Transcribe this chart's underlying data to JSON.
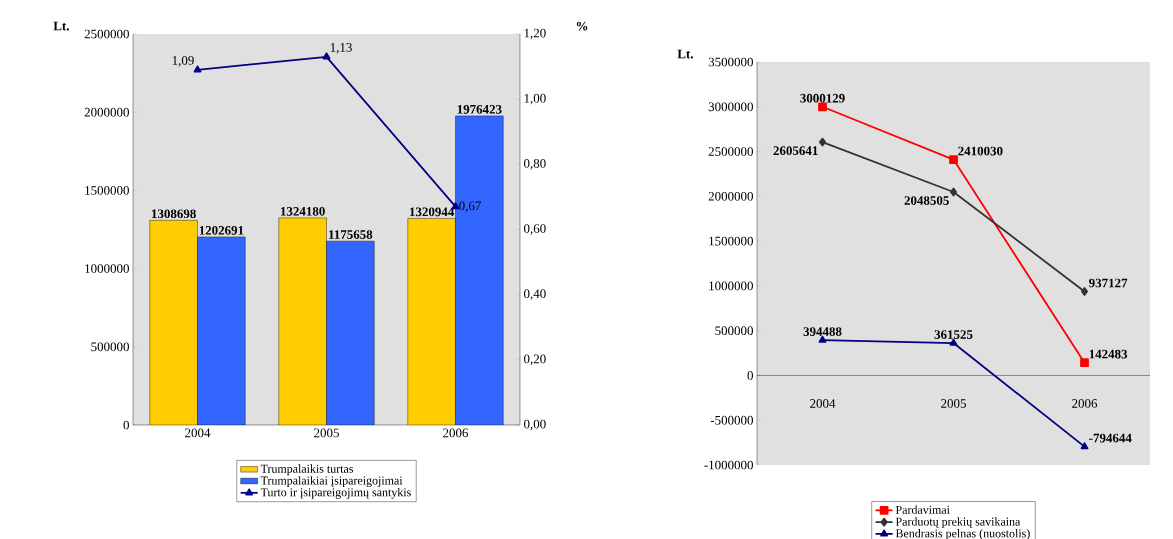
{
  "chart_data": [
    {
      "type": "bar",
      "categories": [
        "2004",
        "2005",
        "2006"
      ],
      "ylabel": "Lt.",
      "y2label": "%",
      "series": [
        {
          "name": "Trumpalaikis turtas",
          "color": "#ffcc00",
          "values": [
            1308698,
            1324180,
            1320944
          ]
        },
        {
          "name": "Trumpalaikiai įsipareigojimai",
          "color": "#3366ff",
          "values": [
            1202691,
            1175658,
            1976423
          ]
        },
        {
          "name": "Turto ir įsipareigojimų santykis",
          "type": "line",
          "axis": "y2",
          "color": "#000080",
          "marker": "triangle",
          "values": [
            1.09,
            1.13,
            0.67
          ],
          "value_labels": [
            "1,09",
            "1,13",
            "0,67"
          ]
        }
      ],
      "ylim": [
        0,
        2500000
      ],
      "yticks": [
        0,
        500000,
        1000000,
        1500000,
        2000000,
        2500000
      ],
      "y2lim": [
        0,
        1.2
      ],
      "y2ticks": [
        {
          "value": 0,
          "label": "0,00"
        },
        {
          "value": 0.2,
          "label": "0,20"
        },
        {
          "value": 0.4,
          "label": "0,40"
        },
        {
          "value": 0.6,
          "label": "0,60"
        },
        {
          "value": 0.8,
          "label": "0,80"
        },
        {
          "value": 1.0,
          "label": "1,00"
        },
        {
          "value": 1.2,
          "label": "1,20"
        }
      ],
      "data_labels": true,
      "legend": "bottom"
    },
    {
      "type": "line",
      "categories": [
        "2004",
        "2005",
        "2006"
      ],
      "ylabel": "Lt.",
      "series": [
        {
          "name": "Pardavimai",
          "color": "#ff0000",
          "marker": "square",
          "values": [
            3000129,
            2410030,
            142483
          ]
        },
        {
          "name": "Parduotų prekių savikaina",
          "color": "#333333",
          "marker": "diamond",
          "values": [
            2605641,
            2048505,
            937127
          ]
        },
        {
          "name": "Bendrasis pelnas (nuostolis)",
          "color": "#000080",
          "marker": "triangle",
          "values": [
            394488,
            361525,
            -794644
          ]
        }
      ],
      "ylim": [
        -1000000,
        3500000
      ],
      "yticks": [
        -1000000,
        -500000,
        0,
        500000,
        1000000,
        1500000,
        2000000,
        2500000,
        3000000,
        3500000
      ],
      "data_labels": true,
      "legend": "bottom"
    }
  ]
}
